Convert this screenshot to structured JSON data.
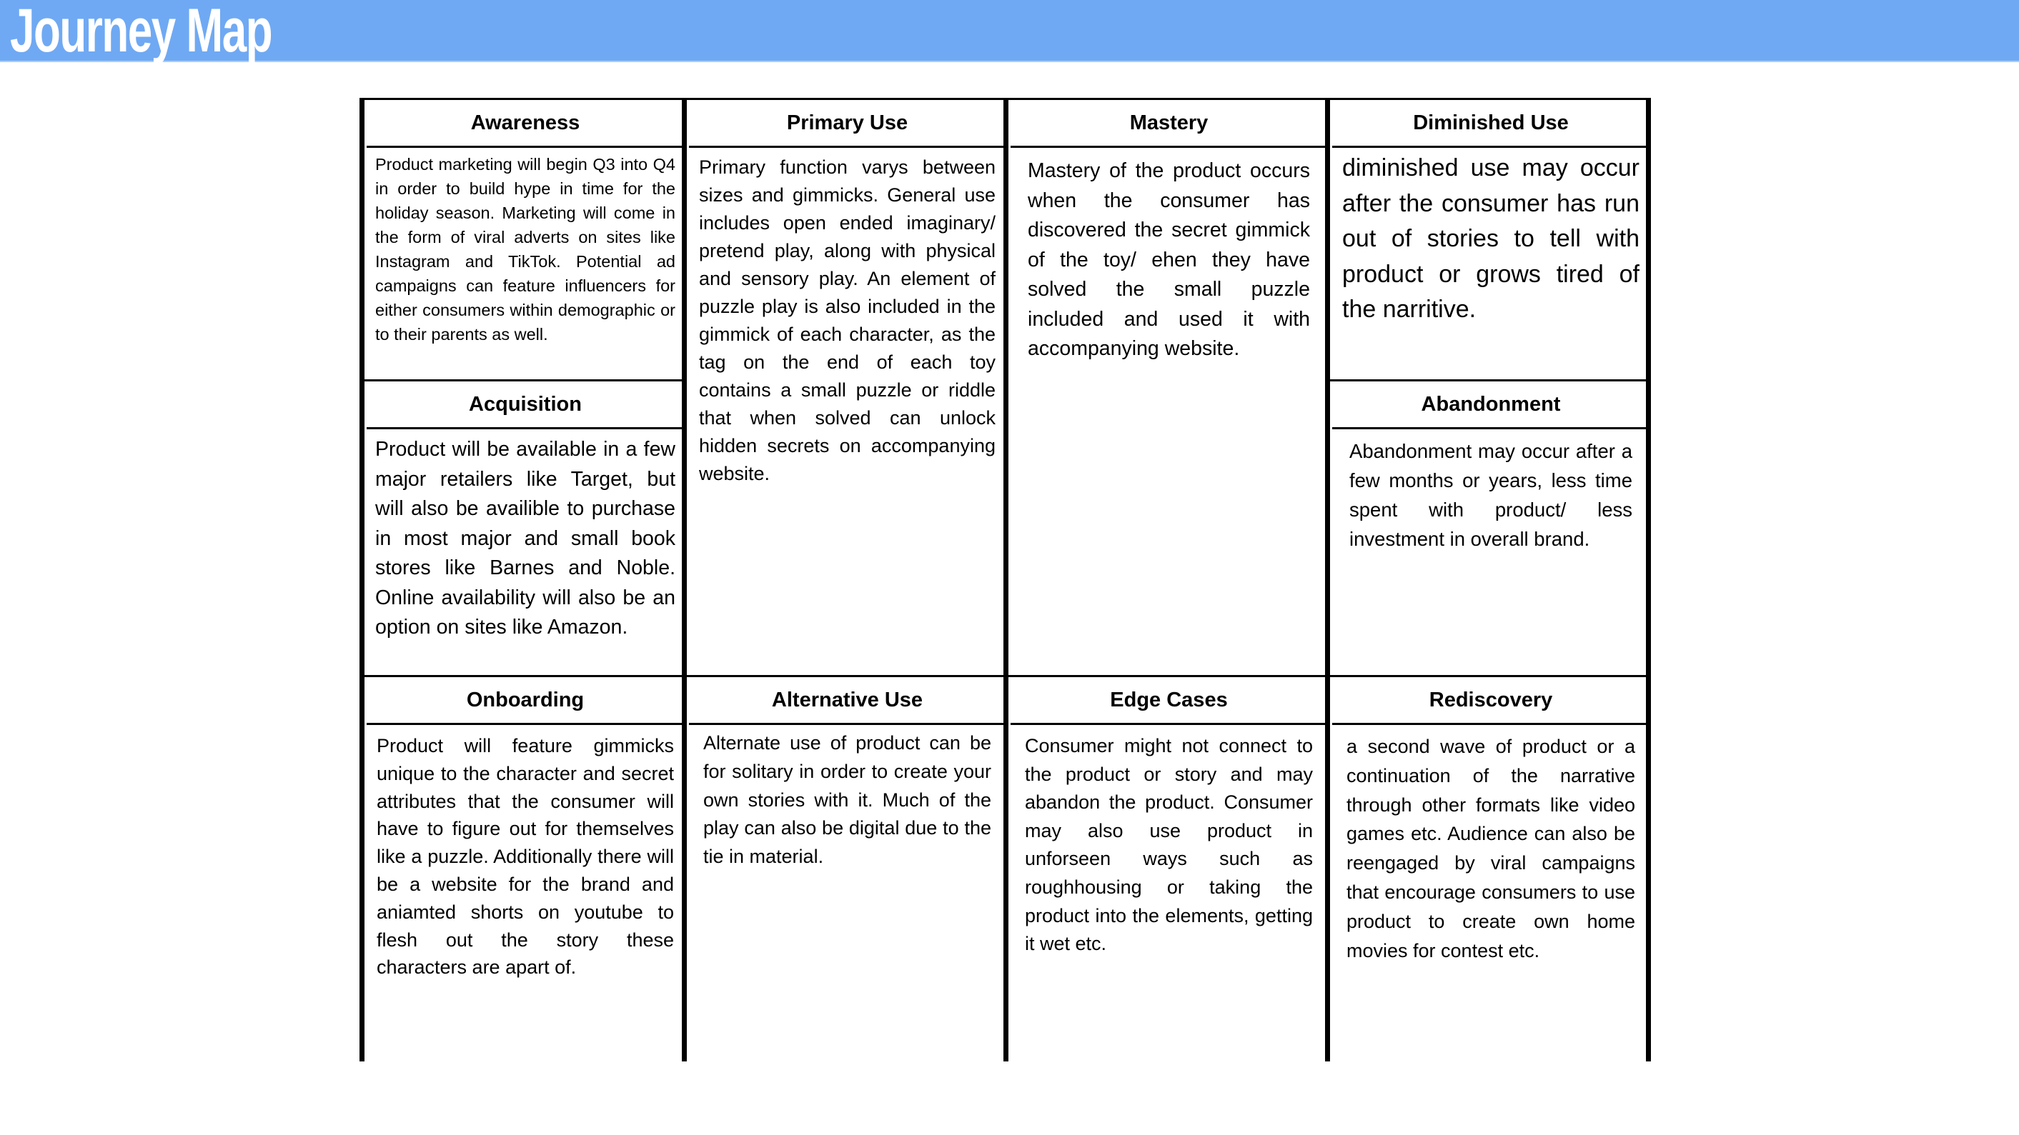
{
  "header": {
    "title": "Journey Map",
    "band_color": "#6fa9f3"
  },
  "sections": {
    "awareness": {
      "title": "Awareness",
      "body": "Product marketing will begin Q3 into Q4 in order to build hype in time for the holiday season. Marketing will come in the form of viral adverts on sites like Instagram and TikTok. Potential ad campaigns can feature influencers for either consumers within demographic or to their parents as well."
    },
    "acquisition": {
      "title": "Acquisition",
      "body": "Product will be available in a few major retailers like Target, but will also be availible to purchase in most major and small book stores like Barnes and Noble. Online availability will also be an option on sites like Amazon."
    },
    "primary_use": {
      "title": "Primary Use",
      "body": "Primary function varys between sizes and gimmicks. General use includes open ended imaginary/ pretend play, along with physical and sensory play. An element of puzzle play is also included in the gimmick of each character, as the tag on the end of each toy contains a small puzzle or riddle that when solved can unlock hidden secrets on accompanying website."
    },
    "mastery": {
      "title": "Mastery",
      "body": "Mastery of the product occurs when the consumer has discovered the secret gimmick of the toy/ ehen they have solved the small puzzle included and used it with accompanying website."
    },
    "diminished_use": {
      "title": "Diminished Use",
      "body": "diminished use may occur after the consumer has run out of stories to tell with product or grows tired of the narritive."
    },
    "abandonment": {
      "title": "Abandonment",
      "body": "Abandonment may occur after a few months or years, less time spent with product/ less investment in overall brand."
    },
    "onboarding": {
      "title": "Onboarding",
      "body": "Product will feature gimmicks unique to the character and secret attributes that the consumer will have to figure out for themselves like a puzzle. Additionally there will be a website for the brand and aniamted shorts on youtube to flesh out the story these characters are apart of."
    },
    "alternative_use": {
      "title": "Alternative Use",
      "body": "Alternate use of product can be for solitary in order to create your own stories with it. Much of the play can also be digital due to the tie in material."
    },
    "edge_cases": {
      "title": "Edge Cases",
      "body": "Consumer might not connect to the product or story and may abandon the product. Consumer may also use product in unforseen ways such as roughhousing or taking the product into the elements, getting it wet etc."
    },
    "rediscovery": {
      "title": "Rediscovery",
      "body": "a second wave of product or a continuation of the narrative through other formats like video games etc. Audience can also be reengaged by viral campaigns that encourage consumers to use product to create own home movies for contest etc."
    }
  }
}
